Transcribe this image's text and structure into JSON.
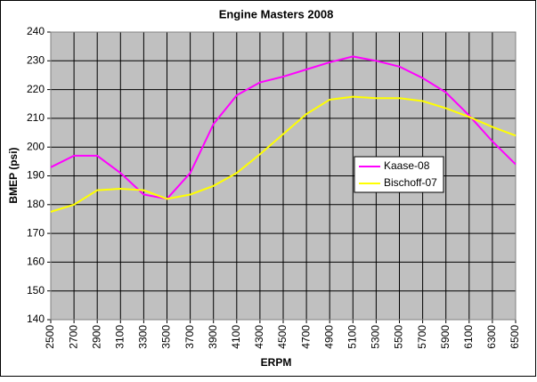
{
  "chart_data": {
    "type": "line",
    "title": "Engine Masters 2008",
    "x_label": "ERPM",
    "y_label": "BMEP (psi)",
    "x": [
      2500,
      2700,
      2900,
      3100,
      3300,
      3500,
      3700,
      3900,
      4100,
      4300,
      4500,
      4700,
      4900,
      5100,
      5300,
      5500,
      5700,
      5900,
      6100,
      6300,
      6500
    ],
    "xlim": [
      2500,
      6500
    ],
    "xticks": [
      2500,
      2700,
      2900,
      3100,
      3300,
      3500,
      3700,
      3900,
      4100,
      4300,
      4500,
      4700,
      4900,
      5100,
      5300,
      5500,
      5700,
      5900,
      6100,
      6300,
      6500
    ],
    "ylim": [
      140,
      240
    ],
    "yticks": [
      140,
      150,
      160,
      170,
      180,
      190,
      200,
      210,
      220,
      230,
      240
    ],
    "grid": true,
    "legend": "right",
    "series": [
      {
        "name": "Kaase-08",
        "color": "#ff00ff",
        "values": [
          193,
          197,
          197,
          191,
          183.5,
          182,
          191,
          208,
          218,
          222.5,
          224.5,
          227,
          229.5,
          231.5,
          230,
          228,
          224,
          219,
          211,
          202,
          194
        ]
      },
      {
        "name": "Bischoff-07",
        "color": "#ffff00",
        "values": [
          177.5,
          180,
          185,
          185.5,
          185,
          182,
          183.5,
          186.5,
          191,
          197.5,
          204.5,
          211.5,
          216.5,
          217.5,
          217,
          217,
          216,
          213.5,
          210.5,
          207,
          204
        ]
      }
    ]
  }
}
